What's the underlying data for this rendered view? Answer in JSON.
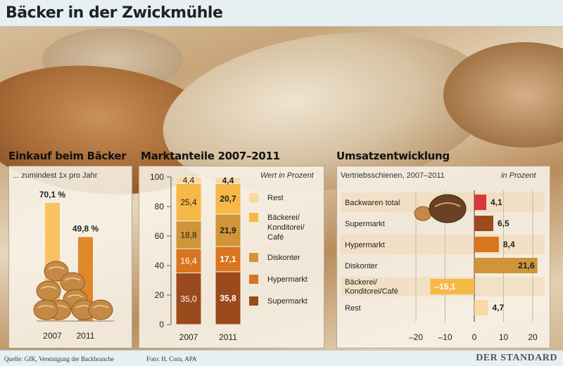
{
  "title": "Bäcker in der Zwickmühle",
  "einkauf": {
    "heading": "Einkauf beim Bäcker",
    "subtitle": "... zumindest 1x pro Jahr",
    "chart_data": {
      "type": "bar",
      "categories": [
        "2007",
        "2011"
      ],
      "values": [
        70.1,
        49.8
      ],
      "value_labels": [
        "70,1 %",
        "49,8 %"
      ],
      "ylim": [
        0,
        100
      ],
      "colors": [
        "#f6c35f",
        "#e0872a"
      ]
    }
  },
  "marktanteile": {
    "heading": "Marktanteile 2007–2011",
    "note": "Wert in Prozent",
    "chart_data": {
      "type": "bar",
      "stacked": true,
      "categories": [
        "2007",
        "2011"
      ],
      "ylim": [
        0,
        100
      ],
      "yticks": [
        0,
        20,
        40,
        60,
        80,
        100
      ],
      "series": [
        {
          "name": "Supermarkt",
          "values": [
            35.0,
            35.8
          ],
          "labels": [
            "35,0",
            "35,8"
          ],
          "color": "#9a4a1d"
        },
        {
          "name": "Hypermarkt",
          "values": [
            16.4,
            17.1
          ],
          "labels": [
            "16,4",
            "17,1"
          ],
          "color": "#d9741f"
        },
        {
          "name": "Diskonter",
          "values": [
            18.8,
            21.9
          ],
          "labels": [
            "18,8",
            "21,9"
          ],
          "color": "#cf9538"
        },
        {
          "name": "Bäckerei/ Konditorei/ Café",
          "values": [
            25.4,
            20.7
          ],
          "labels": [
            "25,4",
            "20,7"
          ],
          "color": "#f6b847"
        },
        {
          "name": "Rest",
          "values": [
            4.4,
            4.4
          ],
          "labels": [
            "4,4",
            "4,4"
          ],
          "color": "#f7d9a5"
        }
      ],
      "legend": [
        {
          "lines": [
            "Rest"
          ],
          "color": "#f7d9a5"
        },
        {
          "lines": [
            "Bäckerei/",
            "Konditorei/",
            "Café"
          ],
          "color": "#f6b847"
        },
        {
          "lines": [
            "Diskonter"
          ],
          "color": "#cf9538"
        },
        {
          "lines": [
            "Hypermarkt"
          ],
          "color": "#d9741f"
        },
        {
          "lines": [
            "Supermarkt"
          ],
          "color": "#9a4a1d"
        }
      ],
      "legend_position": "right"
    }
  },
  "umsatz": {
    "heading": "Umsatzentwicklung",
    "subtitle": "Vertriebsschienen, 2007–2011",
    "note": "in Prozent",
    "chart_data": {
      "type": "bar",
      "orientation": "horizontal",
      "categories": [
        {
          "lines": [
            "Backwaren total"
          ]
        },
        {
          "lines": [
            "Supermarkt"
          ]
        },
        {
          "lines": [
            "Hypermarkt"
          ]
        },
        {
          "lines": [
            "Diskonter"
          ]
        },
        {
          "lines": [
            "Bäckerei/",
            "Konditorei/Café"
          ]
        },
        {
          "lines": [
            "Rest"
          ]
        }
      ],
      "values": [
        4.1,
        6.5,
        8.4,
        21.6,
        -15.1,
        4.7
      ],
      "value_labels": [
        "4,1",
        "6,5",
        "8,4",
        "21,6",
        "–15,1",
        "4,7"
      ],
      "colors": [
        "#d9383a",
        "#9a4a1d",
        "#d9741f",
        "#cf9538",
        "#f6b847",
        "#f7d9a5"
      ],
      "xlim": [
        -25,
        24
      ],
      "xticks": [
        -20,
        -10,
        0,
        10,
        20
      ],
      "xtick_labels": [
        "–20",
        "–10",
        "0",
        "10",
        "20"
      ],
      "grid": true
    }
  },
  "footer": {
    "quelle": "Quelle: GfK, Vereinigung der Backbranche",
    "foto": "Foto: H. Corn, APA",
    "logo": "DER STANDARD"
  }
}
